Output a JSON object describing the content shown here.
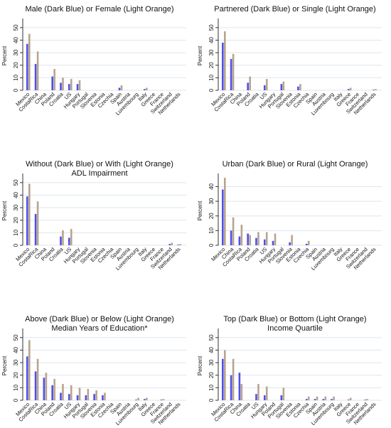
{
  "chart_data": [
    {
      "type": "bar",
      "title": [
        "Male (Dark Blue) or Female (Light Orange)"
      ],
      "ylabel": "Percent",
      "categories": [
        "Mexico",
        "CostaRica",
        "China",
        "Poland",
        "Croatia",
        "US",
        "Hungary",
        "Portugal",
        "Slovenia",
        "Estonia",
        "Czechia",
        "Spain",
        "Austria",
        "Luxembourg",
        "Italy",
        "Greece",
        "France",
        "Switzerland",
        "Netherlands"
      ],
      "series": [
        {
          "color": "#5050e8",
          "values": [
            37,
            21,
            0,
            11,
            6,
            5,
            5,
            0,
            0,
            0,
            0,
            2,
            0,
            0,
            1,
            0,
            0,
            0,
            0
          ]
        },
        {
          "color": "#b8a48e",
          "values": [
            45,
            31,
            0,
            17,
            10,
            9,
            8,
            0,
            0,
            0,
            0,
            4,
            0,
            0,
            2,
            0,
            0,
            0,
            0
          ]
        }
      ],
      "ylim": [
        0,
        55
      ],
      "yticks": [
        0,
        10,
        20,
        30,
        40,
        50
      ],
      "grid": true
    },
    {
      "type": "bar",
      "title": [
        "Partnered (Dark Blue) or Single (Light Orange)"
      ],
      "ylabel": "Percent",
      "categories": [
        "Mexico",
        "CostaRica",
        "China",
        "Poland",
        "Croatia",
        "US",
        "Hungary",
        "Portugal",
        "Slovenia",
        "Estonia",
        "Czechia",
        "Spain",
        "Austria",
        "Luxembourg",
        "Italy",
        "Greece",
        "France",
        "Switzerland",
        "Netherlands"
      ],
      "series": [
        {
          "color": "#5050e8",
          "values": [
            38,
            25,
            0,
            6,
            0,
            4,
            0,
            5,
            0,
            3,
            0,
            0,
            0,
            0,
            0,
            1,
            0,
            0,
            0.5
          ]
        },
        {
          "color": "#b8a48e",
          "values": [
            47,
            29,
            0,
            11,
            0,
            9,
            0,
            7,
            0,
            5,
            0,
            0,
            0,
            0,
            0,
            2,
            0,
            0,
            1
          ]
        }
      ],
      "ylim": [
        0,
        55
      ],
      "yticks": [
        0,
        10,
        20,
        30,
        40,
        50
      ],
      "grid": true
    },
    {
      "type": "bar",
      "title": [
        "Without (Dark Blue) or With (Light Orange)",
        "ADL Impairment"
      ],
      "ylabel": "Percent",
      "categories": [
        "Mexico",
        "CostaRica",
        "China",
        "Poland",
        "Croatia",
        "US",
        "Hungary",
        "Portugal",
        "Slovenia",
        "Estonia",
        "Czechia",
        "Spain",
        "Austria",
        "Luxembourg",
        "Italy",
        "Greece",
        "France",
        "Switzerland",
        "Netherlands"
      ],
      "series": [
        {
          "color": "#5050e8",
          "values": [
            39,
            25,
            0,
            0,
            7,
            6,
            0,
            0,
            0,
            0,
            0,
            0,
            0,
            0,
            0,
            0,
            0,
            1,
            0.5
          ]
        },
        {
          "color": "#b8a48e",
          "values": [
            49,
            35,
            0,
            0,
            12,
            13,
            0,
            0,
            0,
            0,
            0,
            0,
            0,
            0,
            0,
            0,
            0,
            2,
            1
          ]
        }
      ],
      "ylim": [
        0,
        55
      ],
      "yticks": [
        0,
        10,
        20,
        30,
        40,
        50
      ],
      "grid": true
    },
    {
      "type": "bar",
      "title": [
        "Urban (Dark Blue) or Rural (Light Orange)"
      ],
      "ylabel": "Percent",
      "categories": [
        "Mexico",
        "China",
        "CostaRica",
        "Poland",
        "Croatia",
        "US",
        "Hungary",
        "Portugal",
        "Slovenia",
        "Estonia",
        "Czechia",
        "Spain",
        "Austria",
        "Luxembourg",
        "Italy",
        "Greece",
        "France",
        "Switzerland",
        "Netherlands"
      ],
      "series": [
        {
          "color": "#5050e8",
          "values": [
            38,
            10,
            6,
            8,
            5,
            4,
            3,
            0,
            2,
            0,
            1,
            0,
            0,
            0,
            0,
            0,
            0,
            0,
            0
          ]
        },
        {
          "color": "#b8a48e",
          "values": [
            46,
            19,
            14,
            7,
            9,
            9,
            8,
            0,
            7,
            0,
            3,
            0,
            0,
            0,
            0,
            0,
            0,
            0,
            0
          ]
        }
      ],
      "ylim": [
        0,
        47
      ],
      "yticks": [
        0,
        10,
        20,
        30,
        40
      ],
      "grid": true
    },
    {
      "type": "bar",
      "title": [
        "Above (Dark Blue) or Below (Light Orange)",
        "Median Years of Education*"
      ],
      "ylabel": "Percent",
      "categories": [
        "Mexico",
        "CostaRica",
        "China",
        "Poland",
        "Croatia",
        "US",
        "Hungary",
        "Portugal",
        "Slovenia",
        "Estonia",
        "Czechia",
        "Spain",
        "Austria",
        "Luxembourg",
        "Italy",
        "Greece",
        "France",
        "Switzerland",
        "Netherlands"
      ],
      "series": [
        {
          "color": "#5050e8",
          "values": [
            35,
            23,
            18,
            12,
            6,
            5,
            4,
            4,
            5,
            4,
            0,
            0,
            0,
            0.5,
            1,
            0,
            0.5,
            0,
            0
          ]
        },
        {
          "color": "#b8a48e",
          "values": [
            48,
            33,
            22,
            17,
            13,
            12,
            10,
            9,
            8,
            6,
            0,
            0,
            0,
            2,
            2,
            0,
            1,
            0,
            0
          ]
        }
      ],
      "ylim": [
        0,
        55
      ],
      "yticks": [
        0,
        10,
        20,
        30,
        40,
        50
      ],
      "grid": true
    },
    {
      "type": "bar",
      "title": [
        "Top (Dark Blue) or Bottom (Light Orange)",
        "Income Quartile"
      ],
      "ylabel": "Percent",
      "categories": [
        "Mexico",
        "CostaRica",
        "China",
        "Croatia",
        "US",
        "Hungary",
        "Poland",
        "Portugal",
        "Slovenia",
        "Estonia",
        "Czechia",
        "Spain",
        "Austria",
        "Luxembourg",
        "Italy",
        "Greece",
        "France",
        "Switzerland",
        "Netherlands"
      ],
      "series": [
        {
          "color": "#5050e8",
          "values": [
            33,
            20,
            22,
            0,
            5,
            4,
            0,
            4,
            0,
            0,
            1,
            1,
            1,
            1,
            0,
            0.5,
            0,
            0.5,
            0
          ]
        },
        {
          "color": "#b8a48e",
          "values": [
            40,
            33,
            13,
            0,
            13,
            11,
            0,
            10,
            0,
            0,
            3,
            3,
            3,
            3,
            0,
            2,
            0,
            1,
            0
          ]
        }
      ],
      "ylim": [
        0,
        55
      ],
      "yticks": [
        0,
        10,
        20,
        30,
        40,
        50
      ],
      "grid": true
    }
  ]
}
